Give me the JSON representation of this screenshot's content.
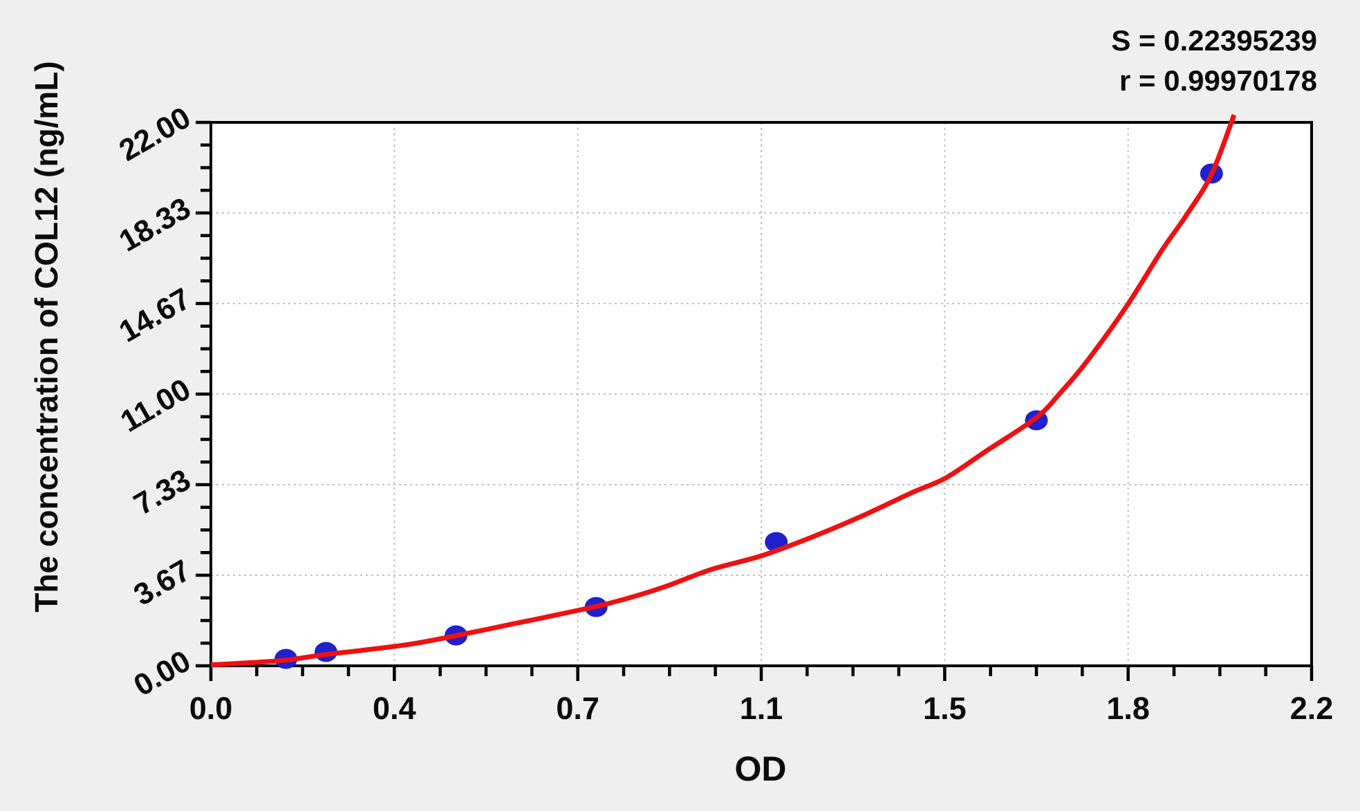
{
  "stats": {
    "s_line": "S = 0.22395239",
    "r_line": "r = 0.99970178"
  },
  "theme": {
    "background": "#efefef",
    "plot_background": "#ffffff",
    "axis_color": "#000000",
    "grid_color": "#c0c0c0",
    "point_color": "#2020cc",
    "curve_color": "#ee1111",
    "text_color": "#0b0b0b"
  },
  "chart_data": {
    "type": "scatter",
    "title": "",
    "xlabel": "OD",
    "ylabel": "The concentration of COL12 (ng/mL)",
    "xlim": [
      0,
      2.2
    ],
    "ylim": [
      0,
      22
    ],
    "x_major_tick_labels": [
      "0.0",
      "0.4",
      "0.7",
      "1.1",
      "1.5",
      "1.8",
      "2.2"
    ],
    "y_major_tick_labels": [
      "0.00",
      "3.67",
      "7.33",
      "11.00",
      "14.67",
      "18.33",
      "22.00"
    ],
    "minor_divisions_per_major": 4,
    "grid": "dashed lines at major ticks",
    "legend_position": "none",
    "annotations": {
      "S": "0.22395239",
      "r": "0.99970178"
    },
    "series": [
      {
        "name": "standard-points",
        "type": "scatter",
        "points": [
          {
            "od": 0.15,
            "conc": 0.28
          },
          {
            "od": 0.23,
            "conc": 0.56
          },
          {
            "od": 0.49,
            "conc": 1.23
          },
          {
            "od": 0.77,
            "conc": 2.38
          },
          {
            "od": 1.13,
            "conc": 5.01
          },
          {
            "od": 1.65,
            "conc": 9.94
          },
          {
            "od": 2.0,
            "conc": 19.93
          }
        ]
      },
      {
        "name": "fitted-curve",
        "type": "line",
        "points": [
          [
            0.0,
            0.04
          ],
          [
            0.08,
            0.13
          ],
          [
            0.15,
            0.23
          ],
          [
            0.23,
            0.46
          ],
          [
            0.3,
            0.62
          ],
          [
            0.4,
            0.88
          ],
          [
            0.49,
            1.22
          ],
          [
            0.6,
            1.68
          ],
          [
            0.7,
            2.1
          ],
          [
            0.8,
            2.55
          ],
          [
            0.9,
            3.15
          ],
          [
            1.0,
            3.9
          ],
          [
            1.1,
            4.45
          ],
          [
            1.2,
            5.2
          ],
          [
            1.3,
            6.05
          ],
          [
            1.4,
            7.0
          ],
          [
            1.47,
            7.62
          ],
          [
            1.55,
            8.7
          ],
          [
            1.65,
            10.05
          ],
          [
            1.7,
            11.1
          ],
          [
            1.75,
            12.3
          ],
          [
            1.83,
            14.55
          ],
          [
            1.9,
            16.8
          ],
          [
            1.95,
            18.25
          ],
          [
            2.0,
            19.9
          ],
          [
            2.045,
            22.3
          ]
        ]
      }
    ]
  }
}
